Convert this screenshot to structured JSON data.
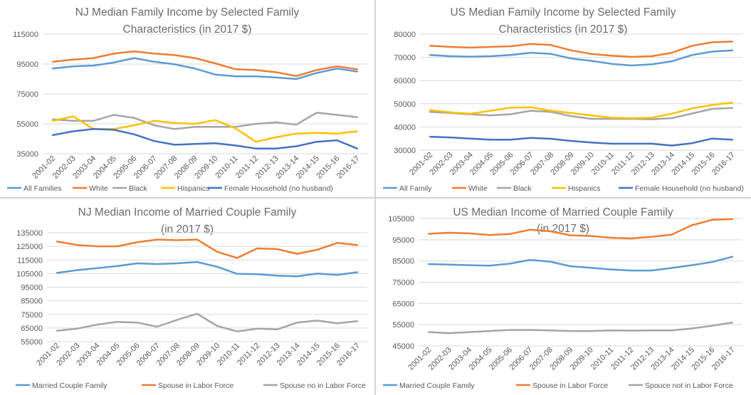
{
  "colors": {
    "blue": "#5b9bd5",
    "orange": "#ed7d31",
    "gray": "#a5a5a5",
    "yellow": "#ffc000",
    "navy": "#4472c4"
  },
  "chart_data": [
    {
      "type": "line",
      "title_lines": [
        "NJ Median Family Income  by Selected Family",
        "Characteristics  (in 2017 $)"
      ],
      "xlabel": "",
      "ylabel": "",
      "categories": [
        "2001-02",
        "2002-03",
        "2003-04",
        "2004-05",
        "2005-06",
        "2006-07",
        "2007-08",
        "2008-09",
        "2009-10",
        "2010-11",
        "2011-12",
        "2012-13",
        "2013-14",
        "2014-15",
        "2015-16",
        "2016-17"
      ],
      "ylim": [
        35000,
        115000
      ],
      "yticks": [
        35000,
        55000,
        75000,
        95000,
        115000
      ],
      "ytick_labels": [
        "35000",
        "55000",
        "75000",
        "95000",
        "115000"
      ],
      "grid": true,
      "legend": "bottom",
      "series": [
        {
          "name": "All Families",
          "color": "#5b9bd5",
          "values": [
            92000,
            93500,
            94000,
            96000,
            99000,
            96500,
            94800,
            92000,
            88000,
            86800,
            86800,
            86000,
            85000,
            89000,
            92000,
            90000
          ]
        },
        {
          "name": "White",
          "color": "#ed7d31",
          "values": [
            96500,
            98000,
            99000,
            102000,
            103500,
            102000,
            101000,
            99000,
            95500,
            91500,
            91000,
            89500,
            87000,
            91000,
            93500,
            91500
          ]
        },
        {
          "name": "Black",
          "color": "#a5a5a5",
          "values": [
            58000,
            57000,
            57000,
            61000,
            59000,
            54000,
            51500,
            53000,
            53000,
            53000,
            55000,
            56000,
            54500,
            62500,
            61000,
            59500
          ]
        },
        {
          "name": "Hispanics",
          "color": "#ffc000",
          "values": [
            57000,
            60000,
            51500,
            51500,
            54000,
            57000,
            55500,
            55000,
            57500,
            52000,
            43000,
            46000,
            48500,
            49000,
            48500,
            50000
          ]
        },
        {
          "name": "Female Household (no husband)",
          "color": "#4472c4",
          "values": [
            47500,
            50000,
            51500,
            51000,
            48000,
            43500,
            41000,
            41500,
            42000,
            40500,
            38500,
            38500,
            40000,
            43000,
            44000,
            38500
          ]
        }
      ]
    },
    {
      "type": "line",
      "title_lines": [
        "US Median Family Income  by Selected Family",
        "Characteristics  (in 2017 $)"
      ],
      "xlabel": "",
      "ylabel": "",
      "categories": [
        "2001-02",
        "2002-03",
        "2003-04",
        "2004-05",
        "2005-06",
        "2006-07",
        "2007-08",
        "2008-09",
        "2009-10",
        "2010-11",
        "2011-12",
        "2012-13",
        "2013-14",
        "2014-15",
        "2015-16",
        "2016-17"
      ],
      "ylim": [
        30000,
        80000
      ],
      "yticks": [
        30000,
        40000,
        50000,
        60000,
        70000,
        80000
      ],
      "ytick_labels": [
        "30000",
        "40000",
        "50000",
        "60000",
        "70000",
        "80000"
      ],
      "grid": true,
      "legend": "bottom",
      "series": [
        {
          "name": "All Family",
          "color": "#5b9bd5",
          "values": [
            71000,
            70500,
            70300,
            70500,
            71000,
            72000,
            71500,
            69500,
            68500,
            67200,
            66500,
            67000,
            68300,
            71000,
            72500,
            73000
          ]
        },
        {
          "name": "White",
          "color": "#ed7d31",
          "values": [
            75000,
            74500,
            74200,
            74500,
            74800,
            75800,
            75300,
            73000,
            71500,
            70700,
            70200,
            70500,
            72000,
            75000,
            76500,
            76800
          ]
        },
        {
          "name": "Black",
          "color": "#a5a5a5",
          "values": [
            46500,
            46000,
            45500,
            45000,
            45500,
            47000,
            46500,
            44700,
            43500,
            43500,
            43500,
            43300,
            43800,
            45800,
            47800,
            48200
          ]
        },
        {
          "name": "Hispanics",
          "color": "#ffc000",
          "values": [
            47300,
            46300,
            45700,
            47000,
            48300,
            48500,
            47000,
            46000,
            45000,
            44000,
            43800,
            44000,
            45700,
            48000,
            49500,
            50500
          ]
        },
        {
          "name": "Female Household (no husband)",
          "color": "#4472c4",
          "values": [
            35800,
            35500,
            35000,
            34500,
            34500,
            35300,
            34900,
            34000,
            33300,
            32800,
            32800,
            32800,
            32000,
            33000,
            35000,
            34500
          ]
        }
      ]
    },
    {
      "type": "line",
      "title_lines": [
        "NJ Median Income of Married Couple Family",
        "(in 2017 $)"
      ],
      "xlabel": "",
      "ylabel": "",
      "categories": [
        "2001-02",
        "2002-03",
        "2003-04",
        "2004-05",
        "2005-06",
        "2006-07",
        "2007-08",
        "2008-09",
        "2009-10",
        "2010-11",
        "2011-12",
        "2012-13",
        "2013-14",
        "2014-15",
        "2015-16",
        "2016-17"
      ],
      "ylim": [
        55000,
        135000
      ],
      "yticks": [
        55000,
        65000,
        75000,
        85000,
        95000,
        105000,
        115000,
        125000,
        135000
      ],
      "ytick_labels": [
        "55000",
        "65000",
        "75000",
        "85000",
        "95000",
        "105000",
        "115000",
        "125000",
        "135000"
      ],
      "grid": true,
      "legend": "bottom",
      "series": [
        {
          "name": "Married Couple Family",
          "color": "#5b9bd5",
          "values": [
            105500,
            107500,
            109000,
            110500,
            112500,
            112000,
            112500,
            113500,
            110000,
            104800,
            104500,
            103500,
            103000,
            105000,
            104000,
            106000
          ]
        },
        {
          "name": "Spouse in Labor Force",
          "color": "#ed7d31",
          "values": [
            128500,
            126000,
            125000,
            125000,
            128000,
            130000,
            129500,
            130000,
            121000,
            116500,
            123500,
            123000,
            119500,
            122500,
            127500,
            126000
          ]
        },
        {
          "name": "Spouse no in Labor Force",
          "color": "#a5a5a5",
          "values": [
            63000,
            64500,
            67500,
            69500,
            69000,
            66000,
            71000,
            75500,
            66500,
            62500,
            64500,
            64000,
            69000,
            70500,
            68500,
            70000
          ]
        }
      ]
    },
    {
      "type": "line",
      "title_lines": [
        "US Median Income of Married Couple Family",
        "(in 2017 $)"
      ],
      "xlabel": "",
      "ylabel": "",
      "categories": [
        "2001-02",
        "2002-03",
        "2003-04",
        "2004-05",
        "2005-06",
        "2006-07",
        "2007-08",
        "2008-09",
        "2009-10",
        "2010-11",
        "2011-12",
        "2012-13",
        "2013-14",
        "2014-15",
        "2015-16",
        "2016-17"
      ],
      "ylim": [
        45000,
        105000
      ],
      "yticks": [
        45000,
        55000,
        65000,
        75000,
        85000,
        95000,
        105000
      ],
      "ytick_labels": [
        "45000",
        "55000",
        "65000",
        "75000",
        "85000",
        "95000",
        "105000"
      ],
      "grid": true,
      "legend": "bottom",
      "series": [
        {
          "name": "Married Couple Family",
          "color": "#5b9bd5",
          "values": [
            83500,
            83300,
            83000,
            82800,
            83700,
            85500,
            84700,
            82500,
            81800,
            81000,
            80500,
            80500,
            81700,
            83000,
            84500,
            87000
          ]
        },
        {
          "name": "Spouse in Labor Force",
          "color": "#ed7d31",
          "values": [
            97800,
            98300,
            98000,
            97200,
            97700,
            99700,
            99000,
            97100,
            96800,
            95900,
            95600,
            96400,
            97400,
            101800,
            104400,
            104700
          ]
        },
        {
          "name": "Spouce not in Labor Force",
          "color": "#a5a5a5",
          "values": [
            51500,
            51000,
            51500,
            52000,
            52500,
            52500,
            52300,
            52000,
            52000,
            52300,
            52200,
            52300,
            52300,
            53200,
            54500,
            56000
          ]
        }
      ]
    }
  ]
}
